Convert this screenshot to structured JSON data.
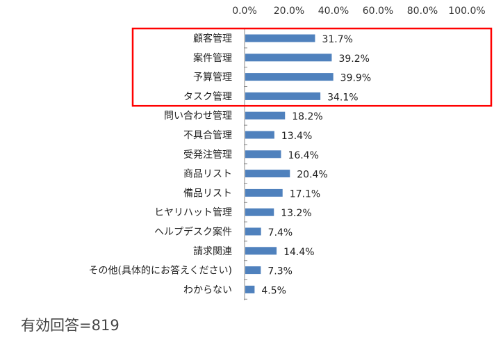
{
  "chart_data": {
    "type": "bar",
    "orientation": "horizontal",
    "categories": [
      "顧客管理",
      "案件管理",
      "予算管理",
      "タスク管理",
      "問い合わせ管理",
      "不具合管理",
      "受発注管理",
      "商品リスト",
      "備品リスト",
      "ヒヤリハット管理",
      "ヘルプデスク案件",
      "請求関連",
      "その他(具体的にお答えください)",
      "わからない"
    ],
    "values": [
      31.7,
      39.2,
      39.9,
      34.1,
      18.2,
      13.4,
      16.4,
      20.4,
      17.1,
      13.2,
      7.4,
      14.4,
      7.3,
      4.5
    ],
    "value_labels": [
      "31.7%",
      "39.2%",
      "39.9%",
      "34.1%",
      "18.2%",
      "13.4%",
      "16.4%",
      "20.4%",
      "17.1%",
      "13.2%",
      "7.4%",
      "14.4%",
      "7.3%",
      "4.5%"
    ],
    "xlim": [
      0,
      100
    ],
    "x_ticks": [
      "0.0%",
      "20.0%",
      "40.0%",
      "60.0%",
      "80.0%",
      "100.0%"
    ],
    "axis_position": "top",
    "grid": false,
    "bar_color": "#4f81bd",
    "highlight": {
      "categories": [
        "顧客管理",
        "案件管理",
        "予算管理",
        "タスク管理"
      ],
      "color": "#ff0000"
    }
  },
  "note": "有効回答=819"
}
